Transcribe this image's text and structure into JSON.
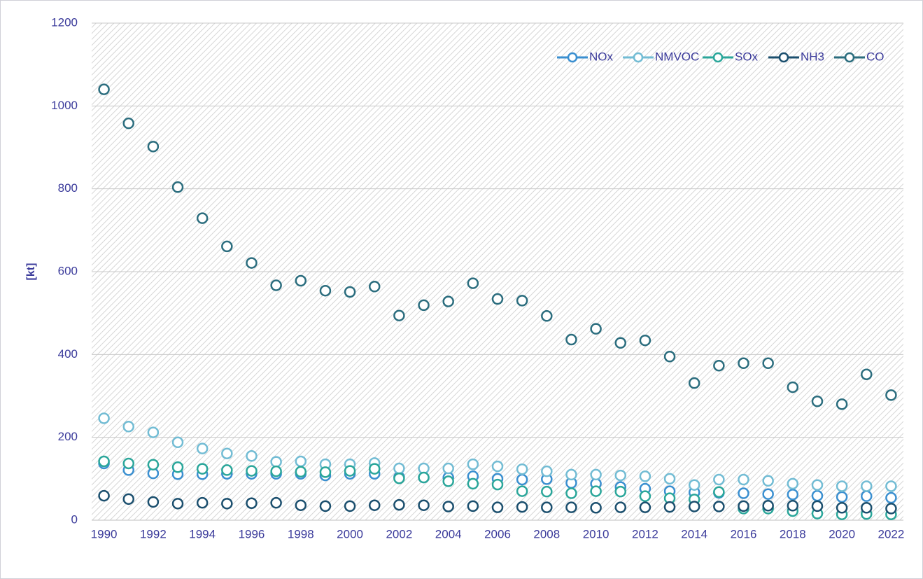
{
  "chart_data": {
    "type": "line",
    "y_label": "[kt]",
    "categories": [
      "1990",
      null,
      "1992",
      null,
      "1994",
      null,
      "1996",
      null,
      "1998",
      null,
      "2000",
      null,
      "2002",
      null,
      "2004",
      null,
      "2006",
      null,
      "2008",
      null,
      "2010",
      null,
      "2012",
      null,
      "2014",
      null,
      "2016",
      null,
      "2018",
      null,
      "2020",
      null,
      "2022"
    ],
    "series": [
      {
        "name": "NOx",
        "color": "#3a8fd0",
        "values": [
          137,
          121,
          113,
          111,
          111,
          112,
          112,
          112,
          112,
          108,
          112,
          112,
          104,
          103,
          103,
          106,
          100,
          98,
          99,
          90,
          88,
          80,
          76,
          70,
          67,
          66,
          65,
          63,
          62,
          59,
          56,
          58,
          54
        ]
      },
      {
        "name": "NMVOC",
        "color": "#72bcd4",
        "values": [
          246,
          226,
          212,
          188,
          173,
          161,
          155,
          141,
          142,
          135,
          135,
          138,
          125,
          125,
          125,
          135,
          130,
          123,
          118,
          110,
          110,
          108,
          106,
          100,
          85,
          98,
          98,
          95,
          88,
          85,
          82,
          82,
          82
        ]
      },
      {
        "name": "SOx",
        "color": "#2aa69a",
        "values": [
          142,
          137,
          134,
          128,
          124,
          121,
          119,
          118,
          117,
          116,
          119,
          124,
          101,
          103,
          94,
          88,
          86,
          70,
          69,
          65,
          70,
          69,
          58,
          53,
          50,
          68,
          28,
          28,
          22,
          16,
          14,
          15,
          14
        ]
      },
      {
        "name": "NH3",
        "color": "#1b4f6e",
        "values": [
          59,
          51,
          44,
          40,
          42,
          40,
          41,
          42,
          36,
          34,
          34,
          36,
          37,
          36,
          33,
          34,
          31,
          32,
          31,
          31,
          30,
          31,
          31,
          32,
          33,
          33,
          34,
          35,
          35,
          34,
          30,
          30,
          28
        ]
      },
      {
        "name": "CO",
        "color": "#2b6d7e",
        "values": [
          1040,
          958,
          902,
          804,
          729,
          661,
          621,
          567,
          578,
          554,
          551,
          564,
          494,
          519,
          528,
          572,
          534,
          530,
          493,
          436,
          462,
          428,
          434,
          395,
          331,
          373,
          379,
          379,
          321,
          287,
          280,
          352,
          302
        ]
      }
    ],
    "ylim": [
      0,
      1200
    ],
    "yticks": [
      0,
      200,
      400,
      600,
      800,
      1000,
      1200
    ],
    "grid": true,
    "legend": "upper right"
  }
}
